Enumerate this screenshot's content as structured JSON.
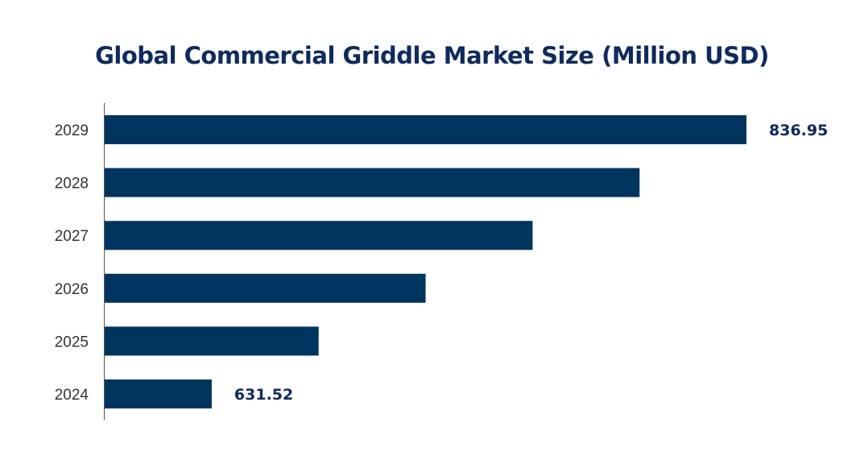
{
  "chart_data": {
    "type": "bar",
    "orientation": "horizontal",
    "title": "Global Commercial Griddle Market Size (Million USD)",
    "categories": [
      "2024",
      "2025",
      "2026",
      "2027",
      "2028",
      "2029"
    ],
    "values": [
      631.52,
      672.6,
      713.7,
      754.8,
      795.9,
      836.95
    ],
    "data_labels": {
      "2024": "631.52",
      "2029": "836.95"
    },
    "xlabel": "",
    "ylabel": "",
    "xlim": [
      590.4,
      836.95
    ],
    "grid": false,
    "legend": "none",
    "bar_color": "#003560",
    "title_color": "#0e2a62"
  }
}
